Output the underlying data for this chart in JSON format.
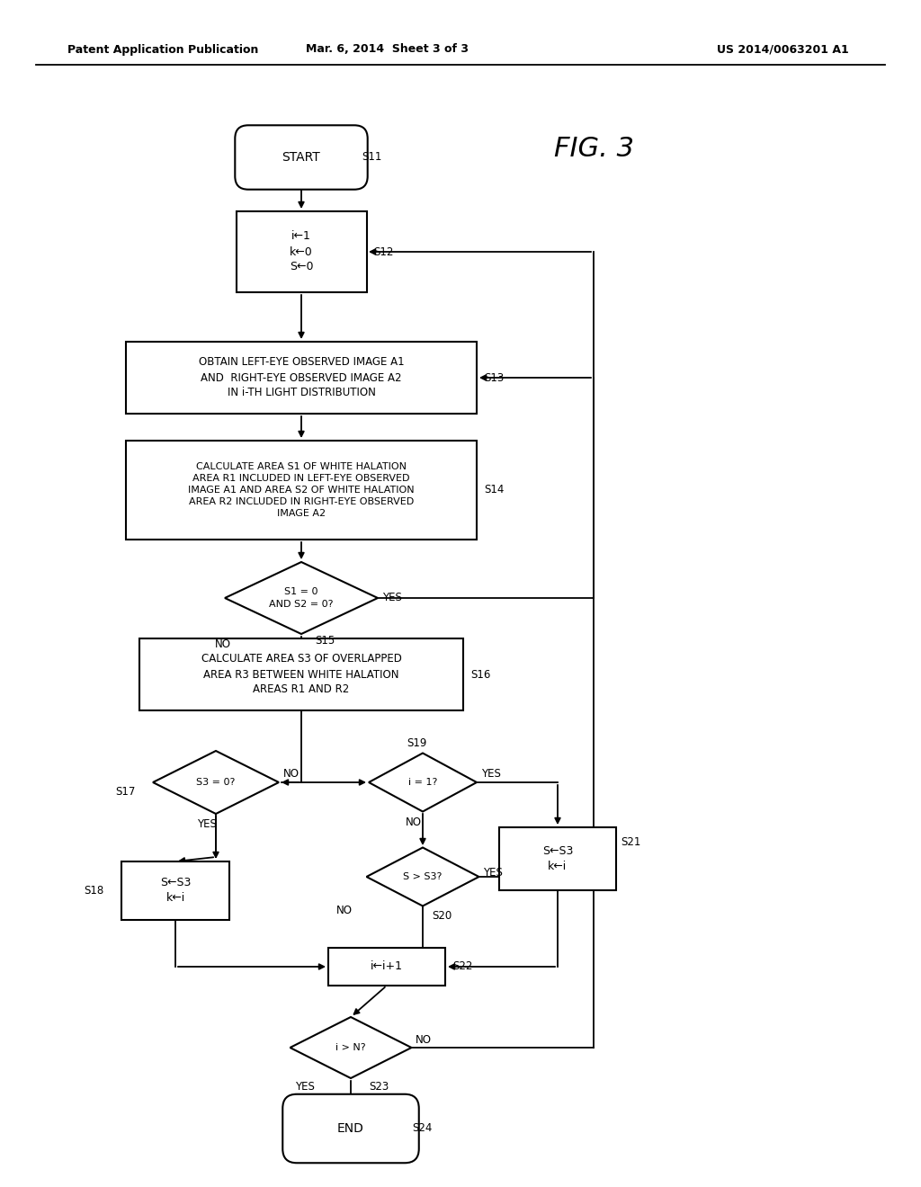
{
  "header_left": "Patent Application Publication",
  "header_mid": "Mar. 6, 2014  Sheet 3 of 3",
  "header_right": "US 2014/0063201 A1",
  "fig_label": "FIG. 3",
  "bg": "#ffffff",
  "lc": "#000000",
  "tc": "#000000",
  "lw": 1.5,
  "arrow_ms": 10
}
